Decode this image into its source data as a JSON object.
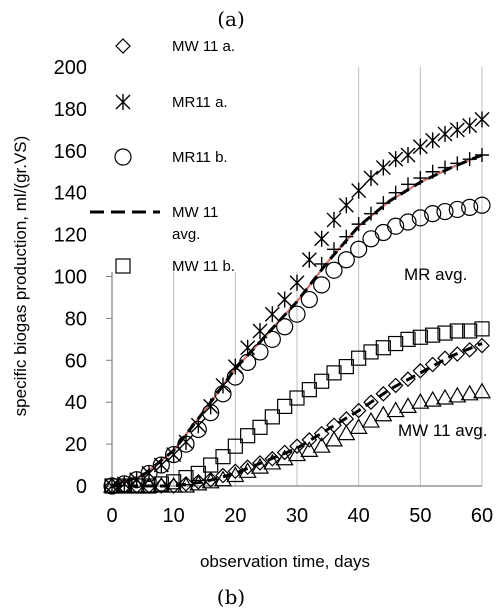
{
  "panel_top_label": "(a)",
  "panel_bottom_label": "(b)",
  "chart_data": {
    "type": "scatter",
    "title": "",
    "xlabel": "observation time, days",
    "ylabel": "specific  biogas production, ml/(gr.VS)",
    "xlim": [
      0,
      60
    ],
    "ylim": [
      0,
      200
    ],
    "xticks": [
      "0",
      "10",
      "20",
      "30",
      "40",
      "50",
      "60"
    ],
    "yticks": [
      "0",
      "20",
      "40",
      "60",
      "80",
      "100",
      "120",
      "140",
      "160",
      "180",
      "200"
    ],
    "grid": "vertical",
    "legend": [
      {
        "label": "MW 11 a.",
        "marker": "diamond"
      },
      {
        "label": "MR11 a.",
        "marker": "asterisk"
      },
      {
        "label": "MR11 b.",
        "marker": "circle"
      },
      {
        "label": "MW 11",
        "label_line2": "avg.",
        "marker": "dashed-line"
      },
      {
        "label": "MW 11 b.",
        "marker": "square"
      }
    ],
    "annotations": [
      "MR avg.",
      "MW 11 avg."
    ],
    "series": [
      {
        "name": "MW 11 a.",
        "marker": "diamond",
        "x": [
          0,
          2,
          4,
          6,
          8,
          10,
          12,
          14,
          16,
          18,
          20,
          22,
          24,
          26,
          28,
          30,
          32,
          34,
          36,
          38,
          40,
          42,
          44,
          46,
          48,
          50,
          52,
          54,
          56,
          58,
          60
        ],
        "y": [
          0,
          0,
          0,
          0,
          0,
          0,
          1,
          2,
          3,
          5,
          7,
          9,
          11,
          13,
          16,
          19,
          22,
          25,
          29,
          32,
          36,
          40,
          44,
          48,
          51,
          55,
          58,
          61,
          63,
          65,
          67
        ]
      },
      {
        "name": "MR11 a.",
        "marker": "asterisk",
        "x": [
          0,
          2,
          4,
          6,
          8,
          10,
          12,
          14,
          16,
          18,
          20,
          22,
          24,
          26,
          28,
          30,
          32,
          34,
          36,
          38,
          40,
          42,
          44,
          46,
          48,
          50,
          52,
          54,
          56,
          58,
          60
        ],
        "y": [
          0,
          1,
          3,
          6,
          10,
          15,
          21,
          29,
          38,
          48,
          57,
          66,
          74,
          82,
          89,
          97,
          108,
          118,
          127,
          134,
          141,
          147,
          152,
          156,
          158,
          162,
          165,
          168,
          170,
          172,
          175
        ]
      },
      {
        "name": "MR11 b.",
        "marker": "circle",
        "x": [
          0,
          2,
          4,
          6,
          8,
          10,
          12,
          14,
          16,
          18,
          20,
          22,
          24,
          26,
          28,
          30,
          32,
          34,
          36,
          38,
          40,
          42,
          44,
          46,
          48,
          50,
          52,
          54,
          56,
          58,
          60
        ],
        "y": [
          0,
          1,
          3,
          6,
          10,
          15,
          20,
          27,
          35,
          44,
          52,
          59,
          64,
          70,
          76,
          82,
          89,
          96,
          103,
          108,
          113,
          118,
          121,
          124,
          126,
          128,
          130,
          131,
          132,
          133,
          134
        ]
      },
      {
        "name": "MR avg.",
        "marker": "plus",
        "x": [
          34,
          36,
          38,
          40,
          42,
          44,
          46,
          48,
          50,
          52,
          54,
          56,
          58,
          60
        ],
        "y": [
          106,
          113,
          119,
          125,
          130,
          135,
          140,
          144,
          147,
          150,
          152,
          154,
          156,
          158
        ]
      },
      {
        "name": "MW 11 b.",
        "marker": "square",
        "x": [
          0,
          2,
          4,
          6,
          8,
          10,
          12,
          14,
          16,
          18,
          20,
          22,
          24,
          26,
          28,
          30,
          32,
          34,
          36,
          38,
          40,
          42,
          44,
          46,
          48,
          50,
          52,
          54,
          56,
          58,
          60
        ],
        "y": [
          0,
          0,
          0,
          0,
          1,
          2,
          4,
          6,
          10,
          14,
          19,
          24,
          28,
          33,
          38,
          42,
          46,
          50,
          54,
          57,
          61,
          64,
          66,
          68,
          70,
          71,
          72,
          73,
          74,
          74,
          75
        ]
      },
      {
        "name": "MW 11 avg.",
        "marker": "triangle",
        "x": [
          0,
          2,
          4,
          6,
          8,
          10,
          12,
          14,
          16,
          18,
          20,
          22,
          24,
          26,
          28,
          30,
          32,
          34,
          36,
          38,
          40,
          42,
          44,
          46,
          48,
          50,
          52,
          54,
          56,
          58,
          60
        ],
        "y": [
          0,
          0,
          0,
          0,
          0,
          0,
          0,
          1,
          2,
          3,
          5,
          7,
          9,
          11,
          13,
          15,
          17,
          19,
          22,
          25,
          28,
          31,
          34,
          36,
          38,
          40,
          41,
          42,
          43,
          44,
          45
        ]
      },
      {
        "name": "MR avg. line",
        "style": "line-red",
        "x": [
          0,
          5,
          10,
          15,
          20,
          25,
          30,
          35,
          40,
          45,
          50,
          55,
          60
        ],
        "y": [
          0,
          5,
          17,
          36,
          56,
          72,
          88,
          107,
          124,
          136,
          145,
          152,
          158
        ]
      },
      {
        "name": "MR avg. dashed",
        "style": "dashed",
        "x": [
          0,
          5,
          10,
          15,
          20,
          25,
          30,
          35,
          40,
          45,
          50,
          55,
          60
        ],
        "y": [
          0,
          5,
          17,
          36,
          56,
          72,
          88,
          107,
          124,
          136,
          145,
          152,
          158
        ]
      },
      {
        "name": "MW 11 avg. dashed",
        "style": "dashed",
        "x": [
          0,
          5,
          10,
          15,
          20,
          25,
          30,
          35,
          40,
          45,
          50,
          55,
          60
        ],
        "y": [
          0,
          0,
          0,
          2,
          6,
          12,
          18,
          27,
          36,
          46,
          54,
          62,
          68
        ]
      }
    ]
  }
}
